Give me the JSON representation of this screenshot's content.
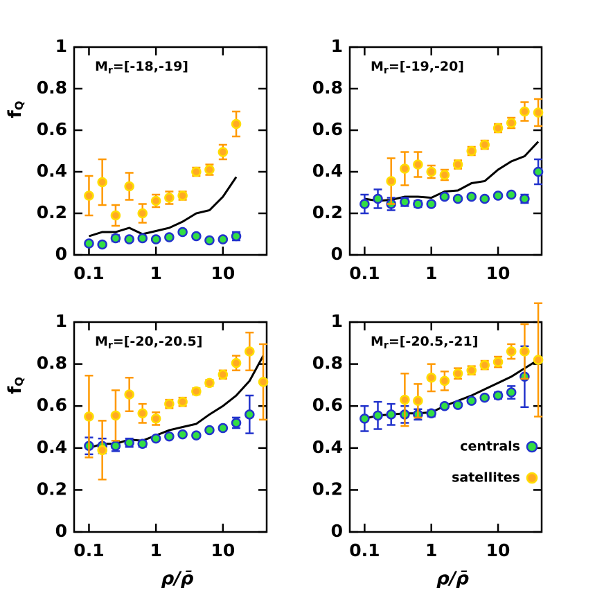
{
  "chart_data": [
    {
      "type": "scatter",
      "annotation_symbol": "M",
      "annotation_subscript": "r",
      "annotation": "=[-18,-19]",
      "ylabel": "f",
      "ylabel_subscript": "Q",
      "log_x": true,
      "xlim": [
        0.06,
        45
      ],
      "xticks": [
        0.1,
        1,
        10
      ],
      "ylim": [
        0,
        1
      ],
      "yticks": [
        0,
        0.2,
        0.4,
        0.6,
        0.8,
        1
      ],
      "x": [
        0.1,
        0.158,
        0.25,
        0.4,
        0.63,
        1,
        1.58,
        2.5,
        4,
        6.3,
        10,
        15.8
      ],
      "series": [
        {
          "style": "line",
          "color": "#000000",
          "values": [
            0.09,
            0.11,
            0.11,
            0.13,
            0.1,
            0.115,
            0.13,
            0.16,
            0.2,
            0.215,
            0.28,
            0.375
          ]
        },
        {
          "style": "points",
          "color": "#33dd44",
          "edgecolor": "#2233cc",
          "values": [
            0.055,
            0.05,
            0.08,
            0.075,
            0.08,
            0.075,
            0.085,
            0.11,
            0.09,
            0.07,
            0.075,
            0.09
          ],
          "errors": [
            0.01,
            0.01,
            0.015,
            0.01,
            0.01,
            0.01,
            0.01,
            0.01,
            0.01,
            0.01,
            0.01,
            0.02
          ]
        },
        {
          "style": "points",
          "color": "#ffaa22",
          "edgecolor": "#ffdd00",
          "errcolor": "#ff9900",
          "values": [
            0.285,
            0.35,
            0.19,
            0.33,
            0.2,
            0.26,
            0.275,
            0.285,
            0.4,
            0.41,
            0.495,
            0.63
          ],
          "errors": [
            0.095,
            0.11,
            0.05,
            0.065,
            0.045,
            0.03,
            0.03,
            0.02,
            0.02,
            0.025,
            0.035,
            0.06
          ]
        }
      ]
    },
    {
      "type": "scatter",
      "annotation_symbol": "M",
      "annotation_subscript": "r",
      "annotation": "=[-19,-20]",
      "log_x": true,
      "xlim": [
        0.06,
        45
      ],
      "xticks": [
        0.1,
        1,
        10
      ],
      "ylim": [
        0,
        1
      ],
      "yticks": [
        0,
        0.2,
        0.4,
        0.6,
        0.8,
        1
      ],
      "x": [
        0.1,
        0.158,
        0.25,
        0.4,
        0.63,
        1,
        1.58,
        2.5,
        4,
        6.3,
        10,
        15.8,
        25,
        40
      ],
      "series": [
        {
          "style": "line",
          "color": "#000000",
          "values": [
            0.27,
            0.26,
            0.265,
            0.28,
            0.28,
            0.275,
            0.305,
            0.31,
            0.345,
            0.355,
            0.41,
            0.45,
            0.475,
            0.545
          ]
        },
        {
          "style": "points",
          "color": "#33dd44",
          "edgecolor": "#2233cc",
          "values": [
            0.245,
            0.27,
            0.245,
            0.255,
            0.245,
            0.245,
            0.28,
            0.27,
            0.28,
            0.27,
            0.285,
            0.29,
            0.27,
            0.4
          ],
          "errors": [
            0.045,
            0.045,
            0.03,
            0.02,
            0.015,
            0.01,
            0.01,
            0.01,
            0.01,
            0.01,
            0.01,
            0.01,
            0.02,
            0.06
          ]
        },
        {
          "style": "points",
          "color": "#ffaa22",
          "edgecolor": "#ffdd00",
          "errcolor": "#ff9900",
          "values": [
            null,
            null,
            0.355,
            0.415,
            0.435,
            0.4,
            0.385,
            0.435,
            0.5,
            0.53,
            0.61,
            0.635,
            0.69,
            0.685
          ],
          "errors": [
            null,
            null,
            0.11,
            0.08,
            0.06,
            0.03,
            0.025,
            0.02,
            0.02,
            0.02,
            0.02,
            0.025,
            0.045,
            0.065
          ]
        }
      ]
    },
    {
      "type": "scatter",
      "annotation_symbol": "M",
      "annotation_subscript": "r",
      "annotation": "=[-20,-20.5]",
      "ylabel": "f",
      "ylabel_subscript": "Q",
      "xlabel": "ρ/ρ̄",
      "log_x": true,
      "xlim": [
        0.06,
        45
      ],
      "xticks": [
        0.1,
        1,
        10
      ],
      "ylim": [
        0,
        1
      ],
      "yticks": [
        0,
        0.2,
        0.4,
        0.6,
        0.8,
        1
      ],
      "x": [
        0.1,
        0.158,
        0.25,
        0.4,
        0.63,
        1,
        1.58,
        2.5,
        4,
        6.3,
        10,
        15.8,
        25,
        40
      ],
      "series": [
        {
          "style": "line",
          "color": "#000000",
          "values": [
            0.4,
            0.42,
            0.42,
            0.44,
            0.435,
            0.46,
            0.485,
            0.5,
            0.515,
            0.56,
            0.6,
            0.65,
            0.72,
            0.84
          ]
        },
        {
          "style": "points",
          "color": "#33dd44",
          "edgecolor": "#2233cc",
          "values": [
            0.41,
            0.41,
            0.41,
            0.425,
            0.42,
            0.445,
            0.455,
            0.465,
            0.46,
            0.485,
            0.495,
            0.52,
            0.56,
            null
          ],
          "errors": [
            0.04,
            0.035,
            0.025,
            0.02,
            0.015,
            0.01,
            0.01,
            0.01,
            0.01,
            0.01,
            0.01,
            0.025,
            0.09,
            null
          ]
        },
        {
          "style": "points",
          "color": "#ffaa22",
          "edgecolor": "#ffdd00",
          "errcolor": "#ff9900",
          "values": [
            0.55,
            0.39,
            0.555,
            0.655,
            0.565,
            0.54,
            0.61,
            0.62,
            0.67,
            0.71,
            0.75,
            0.805,
            0.86,
            0.715
          ],
          "errors": [
            0.195,
            0.14,
            0.12,
            0.08,
            0.045,
            0.03,
            0.02,
            0.02,
            0.015,
            0.015,
            0.02,
            0.035,
            0.09,
            0.18
          ]
        }
      ]
    },
    {
      "type": "scatter",
      "annotation_symbol": "M",
      "annotation_subscript": "r",
      "annotation": "=[-20.5,-21]",
      "xlabel": "ρ/ρ̄",
      "log_x": true,
      "legend": "lower right",
      "xlim": [
        0.06,
        45
      ],
      "xticks": [
        0.1,
        1,
        10
      ],
      "ylim": [
        0,
        1
      ],
      "yticks": [
        0,
        0.2,
        0.4,
        0.6,
        0.8,
        1
      ],
      "x": [
        0.1,
        0.158,
        0.25,
        0.4,
        0.63,
        1,
        1.58,
        2.5,
        4,
        6.3,
        10,
        15.8,
        25,
        40
      ],
      "series": [
        {
          "style": "line",
          "color": "#000000",
          "values": [
            0.54,
            0.555,
            0.56,
            0.565,
            0.565,
            0.57,
            0.6,
            0.625,
            0.65,
            0.68,
            0.71,
            0.74,
            0.78,
            0.82
          ]
        },
        {
          "name": "centrals",
          "style": "points",
          "color": "#33dd44",
          "edgecolor": "#2233cc",
          "values": [
            0.54,
            0.555,
            0.56,
            0.56,
            0.56,
            0.565,
            0.6,
            0.605,
            0.625,
            0.64,
            0.65,
            0.665,
            0.74,
            null
          ],
          "errors": [
            0.06,
            0.065,
            0.05,
            0.04,
            0.025,
            0.015,
            0.01,
            0.01,
            0.01,
            0.01,
            0.015,
            0.03,
            0.145,
            null
          ]
        },
        {
          "name": "satellites",
          "style": "points",
          "color": "#ffaa22",
          "edgecolor": "#ffdd00",
          "errcolor": "#ff9900",
          "values": [
            null,
            null,
            null,
            0.63,
            0.625,
            0.735,
            0.72,
            0.755,
            0.77,
            0.795,
            0.81,
            0.86,
            0.86,
            0.82
          ],
          "errors": [
            null,
            null,
            null,
            0.125,
            0.08,
            0.065,
            0.045,
            0.025,
            0.02,
            0.02,
            0.025,
            0.035,
            0.13,
            0.27
          ]
        }
      ]
    }
  ]
}
